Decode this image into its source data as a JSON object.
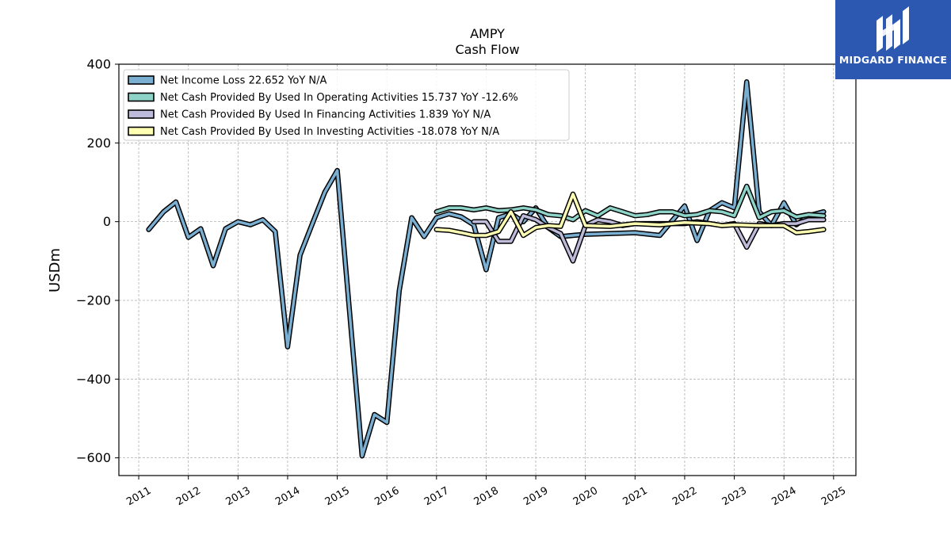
{
  "chart_data": {
    "type": "line",
    "title": "AMPY",
    "subtitle": "Cash Flow",
    "ylabel": "USDm",
    "xlabel": "",
    "ylim": [
      -645,
      400
    ],
    "y_ticks": [
      400,
      200,
      0,
      -200,
      -400,
      -600
    ],
    "y_tick_labels": [
      "400",
      "200",
      "0",
      "−200",
      "−400",
      "−600"
    ],
    "xlim": [
      2010.6,
      2025.45
    ],
    "x_ticks": [
      2011,
      2012,
      2013,
      2014,
      2015,
      2016,
      2017,
      2018,
      2019,
      2020,
      2021,
      2022,
      2023,
      2024,
      2025
    ],
    "x_tick_labels": [
      "2011",
      "2012",
      "2013",
      "2014",
      "2015",
      "2016",
      "2017",
      "2018",
      "2019",
      "2020",
      "2021",
      "2022",
      "2023",
      "2024",
      "2025"
    ],
    "grid": true,
    "legend_position": "top-left",
    "series": [
      {
        "name": "Net Income Loss  22.652 YoY N/A",
        "color": "#7bafd2",
        "x": [
          2011.2,
          2011.5,
          2011.75,
          2012.0,
          2012.25,
          2012.5,
          2012.75,
          2013.0,
          2013.25,
          2013.5,
          2013.75,
          2014.0,
          2014.25,
          2014.5,
          2014.75,
          2015.0,
          2015.5,
          2015.75,
          2016.0,
          2016.25,
          2016.5,
          2016.75,
          2017.0,
          2017.25,
          2017.5,
          2017.75,
          2018.0,
          2018.25,
          2018.5,
          2018.75,
          2019.0,
          2019.25,
          2019.5,
          2019.75,
          2020.0,
          2020.5,
          2021.0,
          2021.5,
          2022.0,
          2022.25,
          2022.5,
          2022.75,
          2023.0,
          2023.25,
          2023.5,
          2023.75,
          2024.0,
          2024.25,
          2024.5,
          2024.8
        ],
        "y": [
          -20,
          25,
          50,
          -40,
          -18,
          -112,
          -18,
          0,
          -8,
          5,
          -25,
          -318,
          -85,
          -5,
          75,
          130,
          -595,
          -490,
          -510,
          -175,
          10,
          -38,
          10,
          20,
          12,
          -8,
          -122,
          10,
          20,
          0,
          35,
          -15,
          -38,
          -35,
          -32,
          -30,
          -28,
          -35,
          40,
          -48,
          28,
          48,
          35,
          355,
          25,
          -10,
          48,
          -8,
          15,
          25
        ]
      },
      {
        "name": "Net Cash Provided By Used In Operating Activities  15.737 YoY -12.6%",
        "color": "#8dd3c7",
        "x": [
          2017.0,
          2017.25,
          2017.5,
          2017.75,
          2018.0,
          2018.25,
          2018.5,
          2018.75,
          2019.0,
          2019.25,
          2019.5,
          2019.75,
          2020.0,
          2020.25,
          2020.5,
          2020.75,
          2021.0,
          2021.25,
          2021.5,
          2021.75,
          2022.0,
          2022.25,
          2022.5,
          2022.75,
          2023.0,
          2023.25,
          2023.5,
          2023.75,
          2024.0,
          2024.25,
          2024.5,
          2024.8
        ],
        "y": [
          25,
          35,
          35,
          30,
          35,
          28,
          30,
          35,
          30,
          18,
          15,
          5,
          28,
          15,
          35,
          25,
          15,
          18,
          25,
          25,
          15,
          18,
          28,
          25,
          15,
          90,
          10,
          25,
          28,
          12,
          18,
          15
        ]
      },
      {
        "name": "Net Cash Provided By Used In Financing Activities  1.839 YoY N/A",
        "color": "#bebada",
        "x": [
          2017.75,
          2018.0,
          2018.25,
          2018.5,
          2018.75,
          2019.0,
          2019.25,
          2019.5,
          2019.75,
          2020.0,
          2020.25,
          2020.5,
          2020.75,
          2021.0,
          2021.5,
          2022.0,
          2022.25,
          2022.5,
          2022.75,
          2023.0,
          2023.25,
          2023.5,
          2023.75,
          2024.0,
          2024.25,
          2024.5,
          2024.8
        ],
        "y": [
          0,
          0,
          -50,
          -50,
          15,
          5,
          -15,
          -30,
          -100,
          -10,
          5,
          0,
          -10,
          -5,
          -5,
          -5,
          0,
          -5,
          -10,
          -5,
          -65,
          -5,
          -10,
          -5,
          -5,
          5,
          5
        ]
      },
      {
        "name": "Net Cash Provided By Used In Investing Activities  -18.078 YoY N/A",
        "color": "#ffffb3",
        "x": [
          2017.0,
          2017.25,
          2017.5,
          2017.75,
          2018.0,
          2018.25,
          2018.5,
          2018.75,
          2019.0,
          2019.25,
          2019.5,
          2019.75,
          2020.0,
          2020.5,
          2021.0,
          2021.5,
          2022.0,
          2022.5,
          2022.75,
          2023.0,
          2023.5,
          2024.0,
          2024.25,
          2024.5,
          2024.8
        ],
        "y": [
          -20,
          -22,
          -28,
          -35,
          -35,
          -25,
          25,
          -35,
          -15,
          -10,
          -12,
          70,
          -10,
          -12,
          -5,
          -8,
          -2,
          -5,
          -10,
          -8,
          -10,
          -10,
          -28,
          -25,
          -20
        ]
      }
    ]
  },
  "logo": {
    "text": "MIDGARD FINANCE",
    "icon": "midgard-m-logo-icon",
    "background": "#2c58b2"
  }
}
